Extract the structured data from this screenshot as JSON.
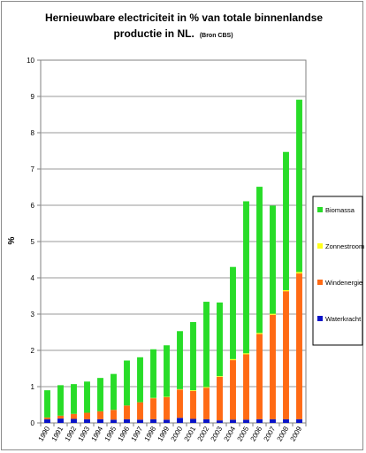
{
  "chart_data": {
    "type": "bar",
    "stacked": true,
    "title_line1": "Hernieuwbare electriciteit in % van totale binnenlandse",
    "title_line2": "productie in NL.",
    "source_note": "(Bron CBS)",
    "xlabel": "",
    "ylabel": "%",
    "ylim": [
      0,
      10
    ],
    "yticks": [
      "0",
      "1",
      "2",
      "3",
      "4",
      "5",
      "6",
      "7",
      "8",
      "9",
      "10"
    ],
    "grid": true,
    "legend_position": "right",
    "categories": [
      "1990",
      "1991",
      "1992",
      "1993",
      "1994",
      "1995",
      "1996",
      "1997",
      "1998",
      "1999",
      "2000",
      "2001",
      "2002",
      "2003",
      "2004",
      "2005",
      "2006",
      "2007",
      "2008",
      "2009"
    ],
    "series": [
      {
        "name": "Waterkracht",
        "color": "#0a14c8",
        "values": [
          0.1,
          0.12,
          0.11,
          0.1,
          0.1,
          0.09,
          0.1,
          0.09,
          0.1,
          0.09,
          0.14,
          0.11,
          0.1,
          0.07,
          0.09,
          0.09,
          0.1,
          0.1,
          0.1,
          0.1
        ]
      },
      {
        "name": "Windenergie",
        "color": "#ff6a14",
        "values": [
          0.05,
          0.08,
          0.14,
          0.18,
          0.22,
          0.27,
          0.38,
          0.48,
          0.58,
          0.62,
          0.78,
          0.77,
          0.87,
          1.2,
          1.64,
          1.8,
          2.35,
          2.88,
          3.53,
          4.02
        ]
      },
      {
        "name": "Zonnestroom",
        "color": "#ffff19",
        "values": [
          0.0,
          0.0,
          0.0,
          0.0,
          0.0,
          0.0,
          0.0,
          0.0,
          0.01,
          0.01,
          0.01,
          0.02,
          0.02,
          0.02,
          0.03,
          0.03,
          0.03,
          0.03,
          0.03,
          0.04
        ]
      },
      {
        "name": "Biomassa",
        "color": "#28dc28",
        "values": [
          0.75,
          0.84,
          0.82,
          0.86,
          0.92,
          0.99,
          1.24,
          1.24,
          1.34,
          1.42,
          1.6,
          1.88,
          2.35,
          2.03,
          2.54,
          4.19,
          4.03,
          2.98,
          3.81,
          4.75
        ]
      }
    ],
    "legend_order": [
      "Biomassa",
      "Zonnestroom",
      "Windenergie",
      "Waterkracht"
    ]
  }
}
